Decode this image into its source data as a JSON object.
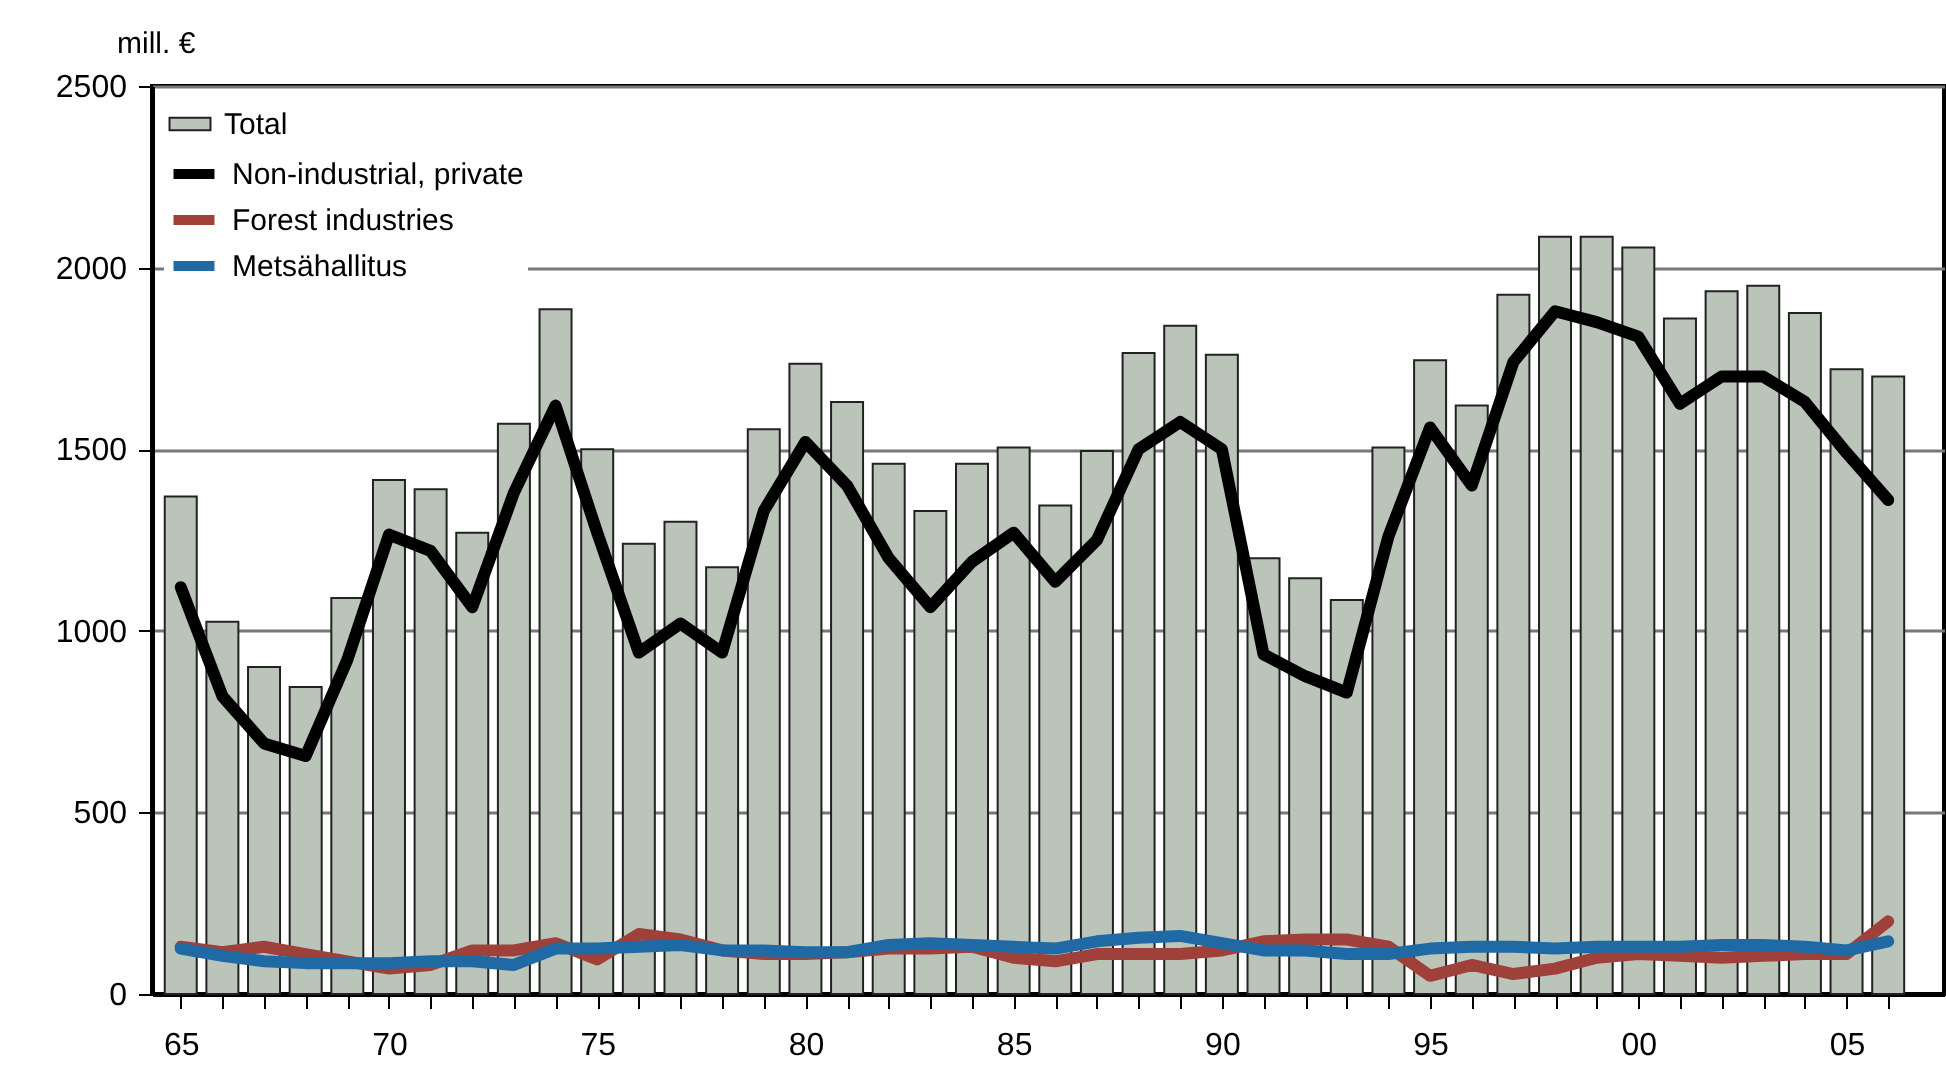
{
  "chart_data": {
    "type": "bar",
    "ylabel": "mill. €",
    "x": [
      1965,
      1966,
      1967,
      1968,
      1969,
      1970,
      1971,
      1972,
      1973,
      1974,
      1975,
      1976,
      1977,
      1978,
      1979,
      1980,
      1981,
      1982,
      1983,
      1984,
      1985,
      1986,
      1987,
      1988,
      1989,
      1990,
      1991,
      1992,
      1993,
      1994,
      1995,
      1996,
      1997,
      1998,
      1999,
      2000,
      2001,
      2002,
      2003,
      2004,
      2005,
      2006
    ],
    "series": [
      {
        "name": "Total",
        "color": "#bac4b9",
        "values": [
          1370,
          1025,
          900,
          845,
          1090,
          1415,
          1390,
          1270,
          1570,
          1885,
          1500,
          1240,
          1300,
          1175,
          1555,
          1735,
          1630,
          1460,
          1330,
          1460,
          1505,
          1345,
          1495,
          1765,
          1840,
          1760,
          1200,
          1145,
          1085,
          1505,
          1745,
          1620,
          1925,
          2085,
          2085,
          2055,
          1860,
          1935,
          1950,
          1875,
          1720,
          1700
        ]
      },
      {
        "name": "Non-industrial, private",
        "type": "line",
        "color": "#000000",
        "values": [
          1120,
          820,
          690,
          655,
          920,
          1265,
          1220,
          1065,
          1380,
          1620,
          1270,
          940,
          1020,
          940,
          1330,
          1520,
          1400,
          1200,
          1065,
          1190,
          1270,
          1135,
          1250,
          1500,
          1575,
          1500,
          935,
          875,
          830,
          1260,
          1560,
          1400,
          1740,
          1880,
          1850,
          1810,
          1625,
          1700,
          1700,
          1630,
          1490,
          1360
        ]
      },
      {
        "name": "Forest industries",
        "type": "line",
        "color": "#a0403a",
        "values": [
          130,
          115,
          130,
          110,
          90,
          70,
          80,
          120,
          120,
          140,
          95,
          165,
          150,
          120,
          110,
          110,
          115,
          125,
          125,
          130,
          100,
          90,
          110,
          110,
          110,
          120,
          145,
          150,
          150,
          130,
          50,
          80,
          55,
          70,
          100,
          110,
          105,
          100,
          105,
          110,
          110,
          200
        ]
      },
      {
        "name": "Metsähallitus",
        "type": "line",
        "color": "#1f6aa5",
        "values": [
          125,
          105,
          90,
          85,
          85,
          85,
          90,
          90,
          80,
          125,
          125,
          130,
          135,
          120,
          120,
          115,
          115,
          135,
          140,
          135,
          130,
          125,
          145,
          155,
          160,
          140,
          120,
          120,
          110,
          110,
          125,
          130,
          130,
          125,
          130,
          130,
          130,
          135,
          135,
          130,
          120,
          145
        ]
      }
    ],
    "xlim": [
      1964.55,
      2007.1
    ],
    "xticks": [
      {
        "value": 1965,
        "label": "65"
      },
      {
        "value": 1966,
        "label": null
      },
      {
        "value": 1967,
        "label": null
      },
      {
        "value": 1968,
        "label": null
      },
      {
        "value": 1969,
        "label": null
      },
      {
        "value": 1970,
        "label": "70"
      },
      {
        "value": 1971,
        "label": null
      },
      {
        "value": 1972,
        "label": null
      },
      {
        "value": 1973,
        "label": null
      },
      {
        "value": 1974,
        "label": null
      },
      {
        "value": 1975,
        "label": "75"
      },
      {
        "value": 1976,
        "label": null
      },
      {
        "value": 1977,
        "label": null
      },
      {
        "value": 1978,
        "label": null
      },
      {
        "value": 1979,
        "label": null
      },
      {
        "value": 1980,
        "label": "80"
      },
      {
        "value": 1981,
        "label": null
      },
      {
        "value": 1982,
        "label": null
      },
      {
        "value": 1983,
        "label": null
      },
      {
        "value": 1984,
        "label": null
      },
      {
        "value": 1985,
        "label": "85"
      },
      {
        "value": 1986,
        "label": null
      },
      {
        "value": 1987,
        "label": null
      },
      {
        "value": 1988,
        "label": null
      },
      {
        "value": 1989,
        "label": null
      },
      {
        "value": 1990,
        "label": "90"
      },
      {
        "value": 1991,
        "label": null
      },
      {
        "value": 1992,
        "label": null
      },
      {
        "value": 1993,
        "label": null
      },
      {
        "value": 1994,
        "label": null
      },
      {
        "value": 1995,
        "label": "95"
      },
      {
        "value": 1996,
        "label": null
      },
      {
        "value": 1997,
        "label": null
      },
      {
        "value": 1998,
        "label": null
      },
      {
        "value": 1999,
        "label": null
      },
      {
        "value": 2000,
        "label": "00"
      },
      {
        "value": 2001,
        "label": null
      },
      {
        "value": 2002,
        "label": null
      },
      {
        "value": 2003,
        "label": null
      },
      {
        "value": 2004,
        "label": null
      },
      {
        "value": 2005,
        "label": "05"
      },
      {
        "value": 2006,
        "label": null
      }
    ],
    "ylim": [
      0,
      2500
    ],
    "yticks": [
      0,
      500,
      1000,
      1500,
      2000,
      2500
    ],
    "grid": "y",
    "legend": "top left",
    "line_style": "solid"
  }
}
